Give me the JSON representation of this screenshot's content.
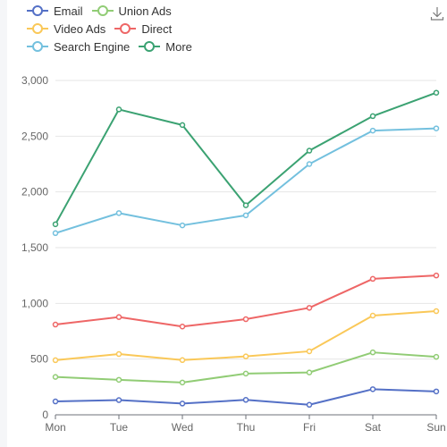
{
  "legend": {
    "rows": [
      [
        0,
        1
      ],
      [
        2,
        3
      ],
      [
        4,
        5
      ]
    ]
  },
  "toolbar": {
    "download_icon": "download-icon"
  },
  "chart_data": {
    "type": "line",
    "x": [
      "Mon",
      "Tue",
      "Wed",
      "Thu",
      "Fri",
      "Sat",
      "Sun"
    ],
    "ylim": [
      0,
      3000
    ],
    "yticks": [
      0,
      500,
      1000,
      1500,
      2000,
      2500,
      3000
    ],
    "ytick_labels": [
      "0",
      "500",
      "1,000",
      "1,500",
      "2,000",
      "2,500",
      "3,000"
    ],
    "grid": true,
    "legend_position": "top-left",
    "series": [
      {
        "name": "Email",
        "color": "#5470c6",
        "values": [
          120,
          132,
          101,
          134,
          90,
          230,
          210
        ]
      },
      {
        "name": "Union Ads",
        "color": "#91cc75",
        "values": [
          340,
          314,
          290,
          370,
          380,
          560,
          520
        ]
      },
      {
        "name": "Video Ads",
        "color": "#fac858",
        "values": [
          490,
          545,
          491,
          524,
          570,
          890,
          930
        ]
      },
      {
        "name": "Direct",
        "color": "#ee6666",
        "values": [
          810,
          877,
          792,
          858,
          960,
          1220,
          1250
        ]
      },
      {
        "name": "Search Engine",
        "color": "#73c0de",
        "values": [
          1630,
          1810,
          1700,
          1790,
          2250,
          2550,
          2570
        ]
      },
      {
        "name": "More",
        "color": "#3ba272",
        "values": [
          1710,
          2740,
          2600,
          1880,
          2370,
          2680,
          2890
        ]
      }
    ]
  }
}
